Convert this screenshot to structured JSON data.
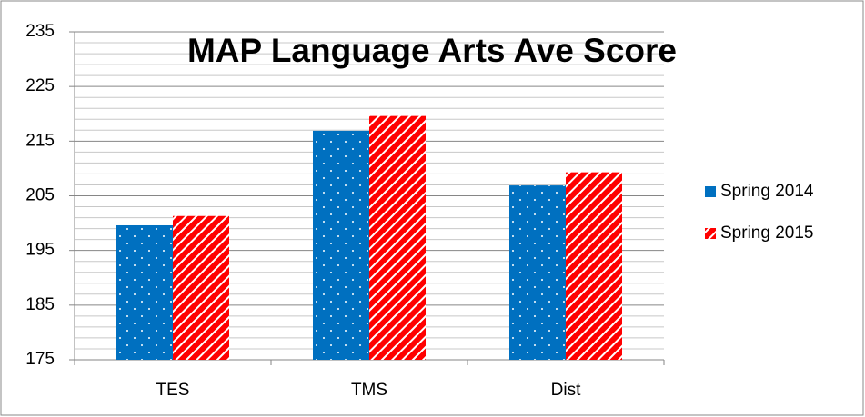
{
  "chart_data": {
    "type": "bar",
    "title": "MAP Language Arts Ave Score",
    "categories": [
      "TES",
      "TMS",
      "Dist"
    ],
    "series": [
      {
        "name": "Spring 2014",
        "color": "#0070c0",
        "pattern": "dots",
        "values": [
          199.6,
          216.9,
          206.9
        ]
      },
      {
        "name": "Spring 2015",
        "color": "#ff0000",
        "pattern": "stripes",
        "values": [
          201.3,
          219.6,
          209.3
        ]
      }
    ],
    "ylim": [
      175,
      235
    ],
    "yticks": [
      175,
      185,
      195,
      205,
      215,
      225,
      235
    ],
    "minor_yticks": [
      177,
      179,
      181,
      183,
      187,
      189,
      191,
      193,
      197,
      199,
      201,
      203,
      207,
      209,
      211,
      213,
      217,
      219,
      221,
      223,
      227,
      229,
      231,
      233
    ],
    "grid": true,
    "legend": "right"
  }
}
